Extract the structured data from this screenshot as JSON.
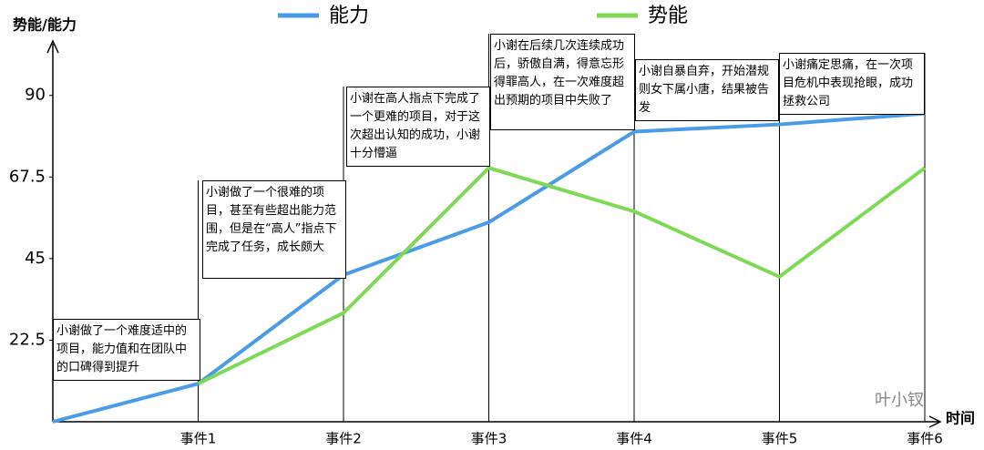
{
  "chart_data": {
    "type": "line",
    "y_label": "势能/能力",
    "x_label": "时间",
    "watermark": "叶小钗",
    "categories": [
      null,
      "事件1",
      "事件2",
      "事件3",
      "事件4",
      "事件5",
      "事件6"
    ],
    "series": [
      {
        "name": "能力",
        "color": "#4a9be8",
        "values": [
          0,
          10.5,
          40.5,
          55,
          80,
          82,
          85
        ]
      },
      {
        "name": "势能",
        "color": "#7ed957",
        "values": [
          null,
          10.5,
          30,
          70,
          58,
          40,
          70
        ]
      }
    ],
    "ylim": [
      0,
      105
    ],
    "yticks": [
      22.5,
      45,
      67.5,
      90
    ],
    "grid": false,
    "annotations": [
      "小谢做了一个难度适中的项目，能力值和在团队中的口碑得到提升",
      "小谢做了一个很难的项目，甚至有些超出能力范围，但是在“高人”指点下完成了任务，成长颇大",
      "小谢在高人指点下完成了一个更难的项目，对于这次超出认知的成功，小谢十分懵逼",
      "小谢在后续几次连续成功后，骄傲自满，得意忘形得罪高人，在一次难度超出预期的项目中失败了",
      "小谢自暴自弃，开始潜规则女下属小唐，结果被告发",
      "小谢痛定思痛，在一次项目危机中表现抢眼，成功拯救公司"
    ]
  }
}
